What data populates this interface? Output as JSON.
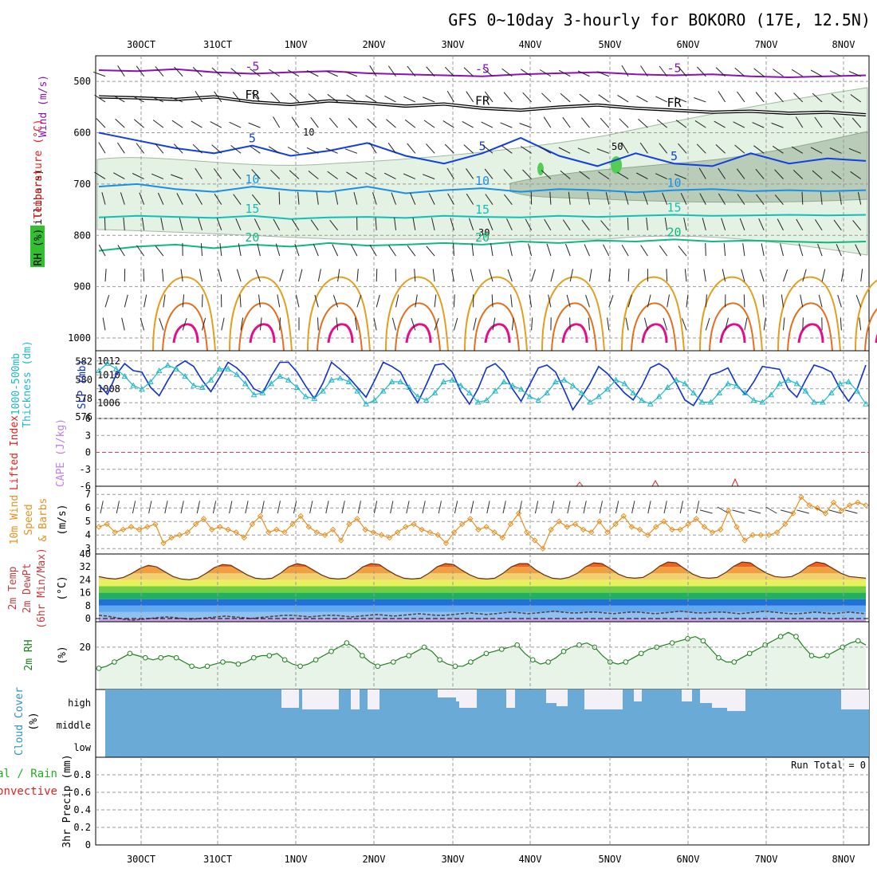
{
  "title": "GFS 0~10day 3-hourly for BOKORO (17E, 12.5N)",
  "colors": {
    "purple": "#8a10b8",
    "black": "#000000",
    "blue": "#1040e0",
    "lightblue": "#1890e8",
    "cyan": "#10c0b8",
    "teal": "#10b880",
    "orange_t": "#e0a020",
    "orange_d": "#e07020",
    "magenta": "#e0108a",
    "cape": "#c080e0",
    "li": "#e02020",
    "wind10": "#e89020",
    "cloud": "#6aaad6",
    "rh2m": "#208020",
    "rh_fill": "#e8f4e8"
  },
  "chart_data": [
    {
      "type": "line",
      "title": "GFS 0~10day 3-hourly for BOKORO (17E, 12.5N)",
      "panel": "upper-air",
      "xlabel_dates": [
        "30OCT",
        "31OCT",
        "1NOV",
        "2NOV",
        "3NOV",
        "4NOV",
        "5NOV",
        "6NOV",
        "7NOV",
        "8NOV"
      ],
      "ylabel": "(millibars)",
      "side_labels": [
        "Wind (m/s)",
        "Temperature (°C)",
        "RH (%)"
      ],
      "y_ticks": [
        500,
        600,
        700,
        800,
        900,
        1000
      ],
      "ylim": [
        450,
        1000
      ],
      "isotherms": [
        {
          "label": "-5",
          "p": [
            478,
            480,
            476,
            482,
            485,
            482,
            480,
            484,
            486,
            488,
            490,
            486,
            484,
            482,
            486,
            488,
            486,
            490,
            492,
            490,
            488
          ]
        },
        {
          "label": "FR",
          "p": [
            530,
            532,
            535,
            530,
            540,
            545,
            538,
            542,
            548,
            544,
            552,
            556,
            550,
            546,
            552,
            556,
            560,
            558,
            562,
            560,
            565
          ]
        },
        {
          "label": "5",
          "p": [
            600,
            615,
            630,
            640,
            625,
            645,
            635,
            620,
            645,
            660,
            640,
            610,
            645,
            665,
            640,
            660,
            665,
            640,
            660,
            650,
            655
          ]
        },
        {
          "label": "10",
          "p": [
            705,
            700,
            710,
            715,
            705,
            712,
            715,
            705,
            718,
            712,
            708,
            715,
            710,
            712,
            716,
            712,
            710,
            714,
            712,
            714,
            712
          ]
        },
        {
          "label": "15",
          "p": [
            765,
            762,
            764,
            766,
            762,
            768,
            765,
            764,
            766,
            762,
            764,
            765,
            762,
            764,
            762,
            760,
            762,
            761,
            760,
            761,
            760
          ]
        },
        {
          "label": "20",
          "p": [
            830,
            822,
            818,
            825,
            818,
            822,
            815,
            820,
            818,
            815,
            818,
            812,
            815,
            810,
            812,
            808,
            812,
            810,
            812,
            814,
            812
          ]
        }
      ],
      "rh_contour_labels": [
        "10",
        "30",
        "50"
      ]
    },
    {
      "type": "line",
      "panel": "thickness-slp",
      "ylabel_left": "1000-500mb Thickness (dm)",
      "ylabel_right": "SLP (mb)",
      "y_ticks_left": [
        576,
        578,
        580,
        582
      ],
      "y_ticks_right": [
        1006,
        1008,
        1010,
        1012
      ],
      "series": [
        {
          "name": "SLP (mb)",
          "values": [
            1008.6,
            1007.2,
            1010.0,
            1011.6,
            1010.6,
            1010.4,
            1008.2,
            1007.0,
            1009.2,
            1011.2,
            1012.0,
            1011.2,
            1009.2,
            1007.6,
            1009.6,
            1011.8,
            1011.0,
            1009.8,
            1008.0,
            1007.4,
            1009.8,
            1011.8,
            1011.8,
            1010.4,
            1008.4,
            1006.6,
            1008.8,
            1011.8,
            1010.8,
            1009.6,
            1008.2,
            1006.8,
            1009.2,
            1011.8,
            1011.2,
            1010.4,
            1008.0,
            1006.0,
            1008.6,
            1011.4,
            1011.6,
            1010.4,
            1007.6,
            1005.8,
            1008.0,
            1011.0,
            1011.6,
            1010.4,
            1008.0,
            1006.2,
            1008.6,
            1011.0,
            1011.4,
            1010.4,
            1007.8,
            1005.0,
            1006.8,
            1008.8,
            1011.2,
            1010.2,
            1008.8,
            1007.4,
            1006.4,
            1008.4,
            1011.0,
            1011.6,
            1010.8,
            1008.8,
            1006.4,
            1005.6,
            1007.6,
            1010.0,
            1010.4,
            1011.0,
            1008.6,
            1007.2,
            1009.0,
            1011.2,
            1011.0,
            1010.8,
            1008.0,
            1006.8,
            1009.2,
            1011.4,
            1011.0,
            1010.4,
            1008.0,
            1006.2,
            1008.0,
            1011.4
          ]
        },
        {
          "name": "1000-500mb Thickness (dm)",
          "values": [
            581.0,
            581.8,
            581.2,
            580.4,
            579.4,
            579.0,
            579.8,
            581.0,
            581.6,
            581.2,
            580.4,
            579.4,
            579.2,
            580.0,
            581.2,
            581.2,
            580.6,
            579.6,
            578.4,
            578.6,
            579.6,
            580.4,
            580.0,
            579.2,
            578.2,
            578.0,
            578.8,
            580.0,
            580.2,
            579.8,
            578.8,
            577.4,
            577.8,
            578.8,
            579.8,
            579.8,
            579.2,
            578.2,
            577.8,
            578.6,
            579.8,
            580.0,
            579.4,
            578.6,
            577.6,
            577.8,
            578.8,
            579.8,
            579.4,
            579.0,
            578.2,
            577.8,
            578.6,
            579.8,
            580.0,
            579.4,
            578.6,
            577.6,
            578.2,
            579.0,
            580.0,
            579.6,
            578.6,
            577.8,
            577.4,
            578.2,
            579.2,
            580.0,
            579.6,
            578.6,
            577.6,
            577.6,
            578.6,
            579.6,
            579.4,
            578.6,
            577.8,
            577.6,
            578.4,
            579.6,
            580.0,
            579.6,
            578.8,
            577.6,
            577.6,
            578.6,
            579.6,
            579.8,
            578.8,
            577.4
          ]
        }
      ]
    },
    {
      "type": "line",
      "panel": "cape-li",
      "ylabel_left": "Lifted Index",
      "ylabel_right": "CAPE (J/kg)",
      "y_ticks": [
        "6",
        "3",
        "0",
        "-3",
        "-6"
      ],
      "series": [
        {
          "name": "Lifted Index",
          "values": []
        },
        {
          "name": "CAPE (J/kg)",
          "values": []
        }
      ]
    },
    {
      "type": "line",
      "panel": "wind10m",
      "ylabel": "10m Wind Speed & Barbs (m/s)",
      "y_ticks": [
        3,
        4,
        5,
        6,
        7
      ],
      "ylim": [
        2.6,
        7.6
      ],
      "series": [
        {
          "name": "10m Wind Speed",
          "values": [
            4.6,
            4.8,
            4.2,
            4.4,
            4.6,
            4.4,
            4.6,
            4.8,
            3.4,
            3.8,
            4.0,
            4.2,
            4.8,
            5.2,
            4.4,
            4.6,
            4.4,
            4.2,
            3.8,
            4.8,
            5.4,
            4.2,
            4.4,
            4.2,
            4.8,
            5.4,
            4.6,
            4.2,
            4.0,
            4.4,
            3.6,
            4.8,
            5.2,
            4.4,
            4.2,
            4.0,
            3.8,
            4.2,
            4.6,
            4.8,
            4.4,
            4.2,
            4.0,
            3.4,
            4.2,
            4.8,
            5.2,
            4.4,
            4.6,
            4.2,
            3.8,
            4.8,
            5.6,
            4.2,
            3.6,
            3.0,
            4.4,
            5.0,
            4.6,
            4.8,
            4.4,
            4.2,
            5.0,
            4.2,
            4.8,
            5.4,
            4.6,
            4.4,
            4.0,
            4.6,
            5.0,
            4.4,
            4.4,
            4.8,
            5.2,
            4.6,
            4.2,
            4.4,
            5.8,
            4.6,
            3.6,
            4.0,
            4.0,
            4.0,
            4.2,
            4.8,
            5.6,
            6.8,
            6.2,
            6.0,
            5.6,
            6.4,
            5.8,
            6.2,
            6.4,
            6.2
          ]
        }
      ]
    },
    {
      "type": "area",
      "panel": "temperature-2m",
      "ylabel": "2m Temp / 2m DewPt (6hr Min/Max) (°C)",
      "y_ticks": [
        0,
        8,
        16,
        24,
        32,
        40
      ],
      "ylim": [
        -2,
        40
      ],
      "series": [
        {
          "name": "2m Temp",
          "values": [
            26,
            25,
            24.5,
            25.5,
            28,
            31,
            33,
            32,
            29,
            26,
            24.5,
            24,
            25,
            28,
            31.5,
            33.5,
            33,
            30,
            27,
            25,
            24.5,
            25,
            28,
            32,
            34,
            33,
            30,
            27,
            25,
            24.5,
            25,
            28,
            32,
            34,
            33.5,
            30,
            27,
            25,
            24.5,
            25,
            28,
            32,
            34,
            33.5,
            30,
            27,
            25,
            24.5,
            25,
            28,
            32,
            34,
            34,
            30,
            27,
            25,
            24.5,
            25.5,
            28,
            32,
            34.5,
            34,
            31,
            27.5,
            25.5,
            25,
            25.5,
            28.5,
            32.5,
            35,
            34.5,
            31,
            27.5,
            25.5,
            25,
            25.5,
            28.5,
            32.5,
            35,
            34.5,
            31,
            28,
            26,
            25.5,
            26,
            28.5,
            32.5,
            35,
            34,
            31,
            28,
            26,
            25.5,
            25
          ]
        },
        {
          "name": "2m DewPt",
          "values": [
            2,
            1.5,
            0.5,
            -0.5,
            -1,
            -0.5,
            0,
            0.5,
            1,
            0.5,
            0,
            -0.5,
            0,
            0.5,
            1,
            1.5,
            1,
            0.5,
            0,
            0.5,
            1,
            1.5,
            2,
            2,
            1.5,
            1,
            1.5,
            2,
            2,
            1.5,
            1,
            1.5,
            2,
            2.5,
            2,
            1.5,
            2,
            2.5,
            3,
            2.5,
            2,
            2,
            2.5,
            3,
            3.5,
            3,
            2.5,
            3,
            3.5,
            4,
            3.5,
            3,
            3.5,
            4,
            4.5,
            4,
            3.5,
            3.5,
            4,
            4,
            3.5,
            3,
            3.5,
            4,
            4,
            3.5,
            3,
            3.5,
            4,
            4.5,
            4,
            3.5,
            3.5,
            4,
            4,
            3.5,
            3,
            3.5,
            4,
            4.5,
            4,
            3.5,
            3,
            3,
            3.5,
            4,
            3.5,
            3,
            3.5,
            4,
            3.5,
            3
          ]
        }
      ]
    },
    {
      "type": "area",
      "panel": "rh-2m",
      "ylabel": "2m RH (%)",
      "y_ticks": [
        20
      ],
      "ylim": [
        0,
        32
      ],
      "series": [
        {
          "name": "2m RH",
          "values": [
            10,
            11,
            13,
            15,
            17,
            16,
            15,
            14,
            15,
            16,
            15,
            13,
            11,
            10,
            11,
            12,
            13,
            13,
            12,
            13,
            15,
            16,
            16,
            17,
            14,
            12,
            11,
            12,
            14,
            16,
            18,
            20,
            22,
            20,
            16,
            13,
            11,
            12,
            13,
            15,
            16,
            18,
            20,
            18,
            14,
            12,
            11,
            11,
            13,
            15,
            17,
            18,
            19,
            20,
            21,
            17,
            14,
            12,
            13,
            15,
            18,
            20,
            21,
            22,
            20,
            16,
            13,
            12,
            13,
            15,
            17,
            19,
            20,
            21,
            22,
            23,
            24,
            25,
            23,
            19,
            15,
            13,
            13,
            15,
            17,
            19,
            21,
            23,
            25,
            27,
            25,
            20,
            16,
            15,
            16,
            18,
            20,
            22,
            23,
            21
          ]
        }
      ]
    },
    {
      "type": "bar",
      "panel": "cloud-cover",
      "ylabel": "Cloud Cover (%)",
      "layers": [
        "high",
        "middle",
        "low"
      ]
    },
    {
      "type": "line",
      "panel": "precip",
      "ylabel": "3hr Precip (mm)",
      "legend": [
        "Total / Rain",
        "Convective"
      ],
      "annotation": "Run Total = 0",
      "y_ticks": [
        "0",
        "0.2",
        "0.4",
        "0.6",
        "0.8"
      ],
      "ylim": [
        0,
        1
      ]
    }
  ]
}
